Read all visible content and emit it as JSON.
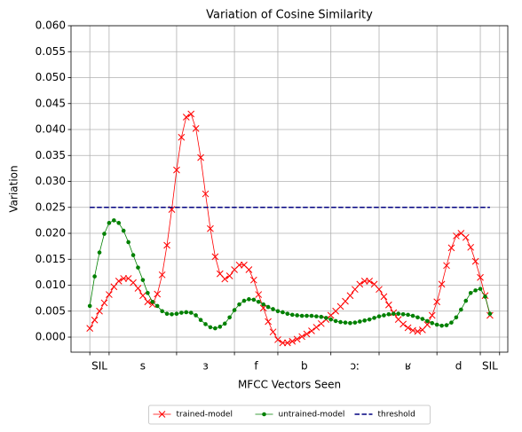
{
  "chart_data": {
    "type": "line",
    "title": "Variation of Cosine Similarity",
    "xlabel": "MFCC Vectors Seen",
    "ylabel": "Variation",
    "categories": [
      "SIL",
      "s",
      "ɜ",
      "f",
      "b",
      "ɔː",
      "ʁ",
      "d",
      "SIL"
    ],
    "category_edges": [
      0,
      4,
      18,
      30,
      39,
      50,
      60,
      72,
      81,
      85
    ],
    "xlim": [
      -3.9,
      86.7
    ],
    "ylim": [
      -0.0029,
      0.06
    ],
    "yticks": [
      {
        "value": 0,
        "label": "0.000"
      },
      0.005,
      {
        "value": 0.01,
        "label": "0.010"
      },
      0.015,
      {
        "value": 0.02,
        "label": "0.020"
      },
      0.025,
      {
        "value": 0.03,
        "label": "0.030"
      },
      0.035,
      {
        "value": 0.04,
        "label": "0.040"
      },
      0.045,
      {
        "value": 0.05,
        "label": "0.050"
      },
      0.055,
      {
        "value": 0.06,
        "label": "0.060"
      }
    ],
    "grid": true,
    "legend": "lower center",
    "x": [
      0,
      1,
      2,
      3,
      4,
      5,
      6,
      7,
      8,
      9,
      10,
      11,
      12,
      13,
      14,
      15,
      16,
      17,
      18,
      19,
      20,
      21,
      22,
      23,
      24,
      25,
      26,
      27,
      28,
      29,
      30,
      31,
      32,
      33,
      34,
      35,
      36,
      37,
      38,
      39,
      40,
      41,
      42,
      43,
      44,
      45,
      46,
      47,
      48,
      49,
      50,
      51,
      52,
      53,
      54,
      55,
      56,
      57,
      58,
      59,
      60,
      61,
      62,
      63,
      64,
      65,
      66,
      67,
      68,
      69,
      70,
      71,
      72,
      73,
      74,
      75,
      76,
      77,
      78,
      79,
      80,
      81,
      82,
      83
    ],
    "series": [
      {
        "name": "trained-model",
        "color": "#ff0000",
        "marker": "x",
        "values": [
          0.0017,
          0.0033,
          0.005,
          0.0066,
          0.0082,
          0.0097,
          0.0108,
          0.0113,
          0.0113,
          0.0105,
          0.0094,
          0.008,
          0.0068,
          0.0063,
          0.0083,
          0.012,
          0.0177,
          0.0246,
          0.0322,
          0.0385,
          0.0424,
          0.043,
          0.0402,
          0.0346,
          0.0276,
          0.0209,
          0.0155,
          0.0122,
          0.0112,
          0.0118,
          0.013,
          0.0139,
          0.0139,
          0.013,
          0.011,
          0.0082,
          0.0056,
          0.003,
          0.001,
          -0.0005,
          -0.0011,
          -0.0011,
          -0.0008,
          -0.0004,
          0.0001,
          0.0006,
          0.0012,
          0.0019,
          0.0026,
          0.0034,
          0.0042,
          0.005,
          0.0059,
          0.0069,
          0.008,
          0.0092,
          0.0102,
          0.0108,
          0.0108,
          0.0102,
          0.0092,
          0.0078,
          0.0062,
          0.0047,
          0.0034,
          0.0025,
          0.0018,
          0.0013,
          0.0011,
          0.0014,
          0.0024,
          0.0042,
          0.0068,
          0.0102,
          0.0138,
          0.0172,
          0.0195,
          0.02,
          0.0192,
          0.0173,
          0.0146,
          0.0115,
          0.008,
          0.0042
        ]
      },
      {
        "name": "untrained-model",
        "color": "#008000",
        "marker": "dot",
        "values": [
          0.006,
          0.0117,
          0.0163,
          0.0199,
          0.022,
          0.0225,
          0.022,
          0.0205,
          0.0183,
          0.0158,
          0.0134,
          0.011,
          0.0085,
          0.0068,
          0.006,
          0.005,
          0.0045,
          0.0044,
          0.0045,
          0.0047,
          0.0048,
          0.0047,
          0.0042,
          0.0033,
          0.0025,
          0.0019,
          0.0017,
          0.002,
          0.0026,
          0.0038,
          0.0052,
          0.0063,
          0.007,
          0.0073,
          0.0072,
          0.0068,
          0.0063,
          0.0058,
          0.0054,
          0.005,
          0.0048,
          0.0045,
          0.0043,
          0.0042,
          0.0041,
          0.0041,
          0.0041,
          0.004,
          0.0039,
          0.0037,
          0.0034,
          0.0031,
          0.0029,
          0.0028,
          0.0027,
          0.0028,
          0.003,
          0.0032,
          0.0034,
          0.0037,
          0.004,
          0.0042,
          0.0044,
          0.0045,
          0.0045,
          0.0044,
          0.0043,
          0.0041,
          0.0038,
          0.0035,
          0.0031,
          0.0027,
          0.0024,
          0.0022,
          0.0023,
          0.0028,
          0.0038,
          0.0053,
          0.007,
          0.0085,
          0.009,
          0.0093,
          0.0078,
          0.0045
        ]
      },
      {
        "name": "threshold",
        "color": "#000080",
        "dashed": true,
        "x": [
          0,
          83
        ],
        "values": [
          0.025,
          0.025
        ]
      }
    ]
  }
}
